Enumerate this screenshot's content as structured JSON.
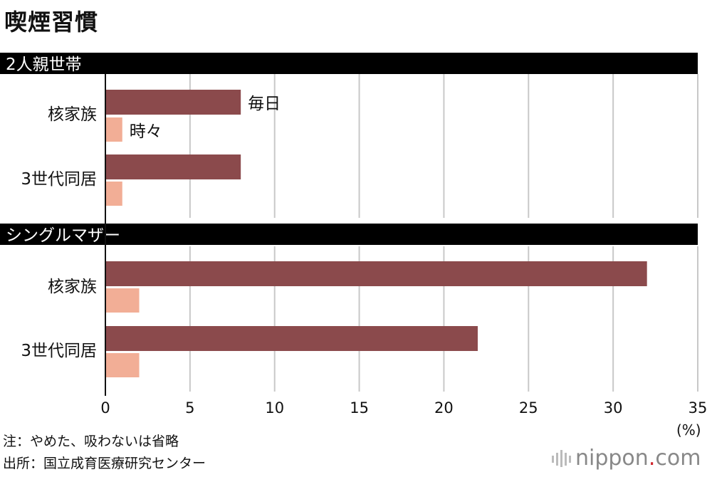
{
  "title": "喫煙習慣",
  "unit": "(%)",
  "notes": {
    "note": "注：やめた、吸わないは省略",
    "source": "出所：国立成育医療研究センター"
  },
  "logo": {
    "text": "nippon",
    "dot": ".",
    "suffix": "com"
  },
  "colors": {
    "daily": "#8b4a4c",
    "sometimes": "#f2ae96",
    "header": "#000000",
    "grid": "#c8c8c8"
  },
  "chart_data": {
    "type": "bar",
    "orientation": "horizontal",
    "xlim": [
      0,
      35
    ],
    "xticks": [
      0,
      5,
      10,
      15,
      20,
      25,
      30,
      35
    ],
    "grid": true,
    "series_names": [
      "毎日",
      "時々"
    ],
    "groups": [
      {
        "label": "2人親世帯",
        "categories": [
          {
            "label": "核家族",
            "values": [
              8,
              1
            ]
          },
          {
            "label": "3世代同居",
            "values": [
              8,
              1
            ]
          }
        ]
      },
      {
        "label": "シングルマザー",
        "categories": [
          {
            "label": "核家族",
            "values": [
              32,
              2
            ]
          },
          {
            "label": "3世代同居",
            "values": [
              22,
              2
            ]
          }
        ]
      }
    ]
  }
}
